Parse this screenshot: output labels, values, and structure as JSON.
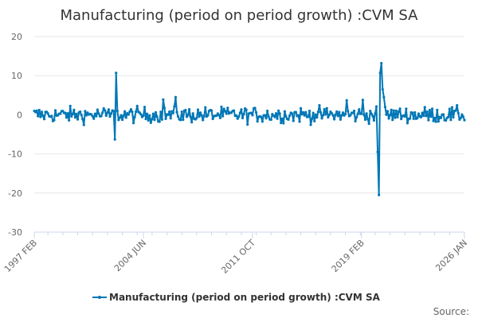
{
  "chart_data": {
    "type": "line",
    "title": "Manufacturing (period on period growth) :CVM SA",
    "xlabel": "",
    "ylabel": "",
    "xlim": [
      1997.08,
      2026.0
    ],
    "ylim": [
      -30,
      20
    ],
    "y_ticks": [
      20,
      10,
      0,
      -10,
      -20,
      -30
    ],
    "x_tick_labels": [
      {
        "label": "1997 FEB",
        "x": 1997.08
      },
      {
        "label": "2004 JUN",
        "x": 2004.42
      },
      {
        "label": "2011 OCT",
        "x": 2011.75
      },
      {
        "label": "2019 FEB",
        "x": 2019.08
      },
      {
        "label": "2026 JAN",
        "x": 2026.0
      }
    ],
    "grid": "horizontal",
    "legend": "bottom-center",
    "series": [
      {
        "name": "Manufacturing (period on period growth) :CVM SA",
        "color": "#0077b6",
        "note": "Monthly series; noise values between ±3 are estimated, spikes read from chart",
        "spikes": [
          {
            "x": 2002.5,
            "y": -6.3
          },
          {
            "x": 2002.58,
            "y": 10.7
          },
          {
            "x": 2002.67,
            "y": 1.0
          },
          {
            "x": 2020.17,
            "y": -9.5
          },
          {
            "x": 2020.25,
            "y": -20.5
          },
          {
            "x": 2020.33,
            "y": 10.7
          },
          {
            "x": 2020.42,
            "y": 13.2
          },
          {
            "x": 2020.5,
            "y": 6.5
          },
          {
            "x": 2020.58,
            "y": 4.5
          },
          {
            "x": 2020.67,
            "y": 2.0
          }
        ],
        "notable_points": [
          {
            "x": 2005.75,
            "y": 3.9
          },
          {
            "x": 2006.58,
            "y": 4.5
          },
          {
            "x": 2019.17,
            "y": 3.8
          },
          {
            "x": 2018.08,
            "y": 3.7
          }
        ]
      }
    ]
  },
  "legend": {
    "label": "Manufacturing (period on period growth) :CVM SA"
  },
  "source_label": "Source:"
}
